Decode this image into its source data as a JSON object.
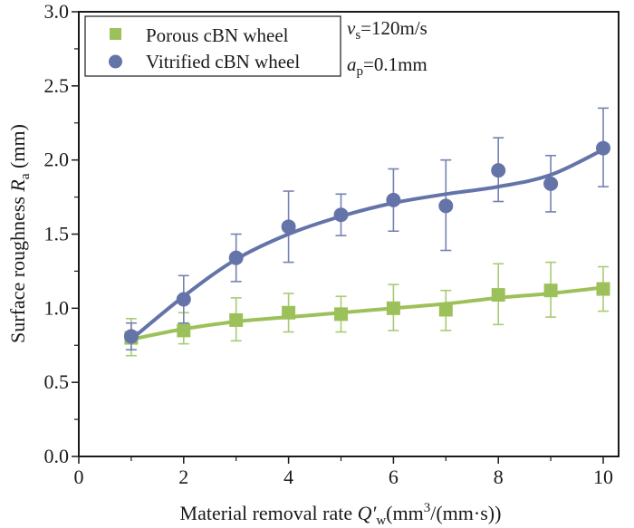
{
  "chart_data": {
    "type": "line",
    "title": "",
    "xlabel": {
      "main": "Material removal rate ",
      "symbol": "Q′",
      "symbol_sub": "w",
      "unit_open": "(mm",
      "unit_sup": "3",
      "unit_close": "/(mm·s))"
    },
    "ylabel": {
      "main": "Surface roughness ",
      "symbol": "R",
      "symbol_sub": "a",
      "unit": " (mm)"
    },
    "xlim": [
      0,
      10.3
    ],
    "ylim": [
      0,
      3.0
    ],
    "x_ticks": [
      0,
      2,
      4,
      6,
      8,
      10
    ],
    "x_tick_labels": [
      "0",
      "2",
      "4",
      "6",
      "8",
      "10"
    ],
    "x_minor_ticks": [
      1,
      3,
      5,
      7,
      9
    ],
    "y_ticks": [
      0,
      0.5,
      1.0,
      1.5,
      2.0,
      2.5,
      3.0
    ],
    "y_tick_labels": [
      "0.0",
      "0.5",
      "1.0",
      "1.5",
      "2.0",
      "2.5",
      "3.0"
    ],
    "y_minor_ticks": [
      0.25,
      0.75,
      1.25,
      1.75,
      2.25,
      2.75
    ],
    "grid": false,
    "legend_position": "top-left",
    "x": [
      1,
      2,
      3,
      4,
      5,
      6,
      7,
      8,
      9,
      10
    ],
    "series": [
      {
        "name": "Porous cBN wheel",
        "marker": "square",
        "color": "#9dc15a",
        "values": [
          0.8,
          0.85,
          0.92,
          0.97,
          0.96,
          1.0,
          0.99,
          1.09,
          1.12,
          1.13
        ],
        "err_upper": [
          0.93,
          0.97,
          1.07,
          1.1,
          1.08,
          1.16,
          1.12,
          1.3,
          1.31,
          1.28
        ],
        "err_lower": [
          0.68,
          0.76,
          0.78,
          0.84,
          0.84,
          0.85,
          0.85,
          0.89,
          0.94,
          0.98
        ],
        "fit": [
          0.79,
          0.86,
          0.91,
          0.94,
          0.97,
          1.0,
          1.03,
          1.07,
          1.1,
          1.14
        ]
      },
      {
        "name": "Vitrified cBN wheel",
        "marker": "circle",
        "color": "#6474a8",
        "values": [
          0.81,
          1.06,
          1.34,
          1.55,
          1.63,
          1.73,
          1.69,
          1.93,
          1.84,
          2.08
        ],
        "err_upper": [
          0.9,
          1.22,
          1.5,
          1.79,
          1.77,
          1.94,
          2.0,
          2.15,
          2.03,
          2.35
        ],
        "err_lower": [
          0.72,
          0.9,
          1.18,
          1.31,
          1.49,
          1.52,
          1.39,
          1.72,
          1.65,
          1.82
        ],
        "fit": [
          0.79,
          1.08,
          1.33,
          1.5,
          1.62,
          1.71,
          1.77,
          1.82,
          1.9,
          2.07
        ]
      }
    ],
    "annotations": [
      {
        "symbol": "v",
        "sub": "s",
        "text": "=120m/s"
      },
      {
        "symbol": "a",
        "sub": "p",
        "text": "=0.1mm"
      }
    ]
  }
}
